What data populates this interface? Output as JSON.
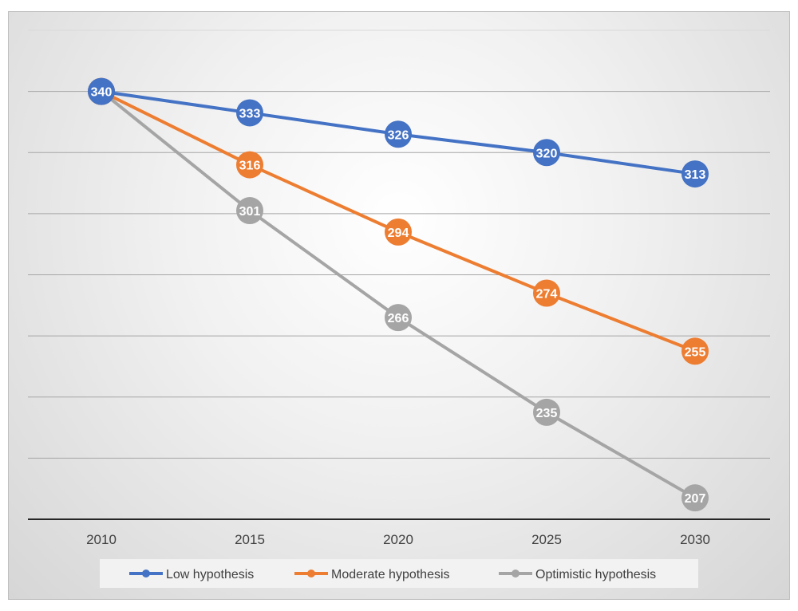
{
  "chart_data": {
    "type": "line",
    "title": "",
    "xlabel": "",
    "ylabel": "",
    "categories": [
      "2010",
      "2015",
      "2020",
      "2025",
      "2030"
    ],
    "ylim": [
      200,
      350
    ],
    "y_axis_labels_shown": false,
    "grid": true,
    "legend_position": "bottom",
    "series": [
      {
        "name": "Low hypothesis",
        "color": "#4472c4",
        "values": [
          340,
          333,
          326,
          320,
          313
        ],
        "labels": [
          "340",
          "333",
          "326",
          "320",
          "313"
        ]
      },
      {
        "name": "Moderate hypothesis",
        "color": "#ed7d31",
        "values": [
          340,
          316,
          294,
          274,
          255
        ],
        "labels": [
          "340",
          "316",
          "294",
          "274",
          "255"
        ]
      },
      {
        "name": "Optimistic hypothesis",
        "color": "#a5a5a5",
        "values": [
          340,
          301,
          266,
          235,
          207
        ],
        "labels": [
          "340",
          "301",
          "266",
          "235",
          "207"
        ]
      }
    ]
  }
}
